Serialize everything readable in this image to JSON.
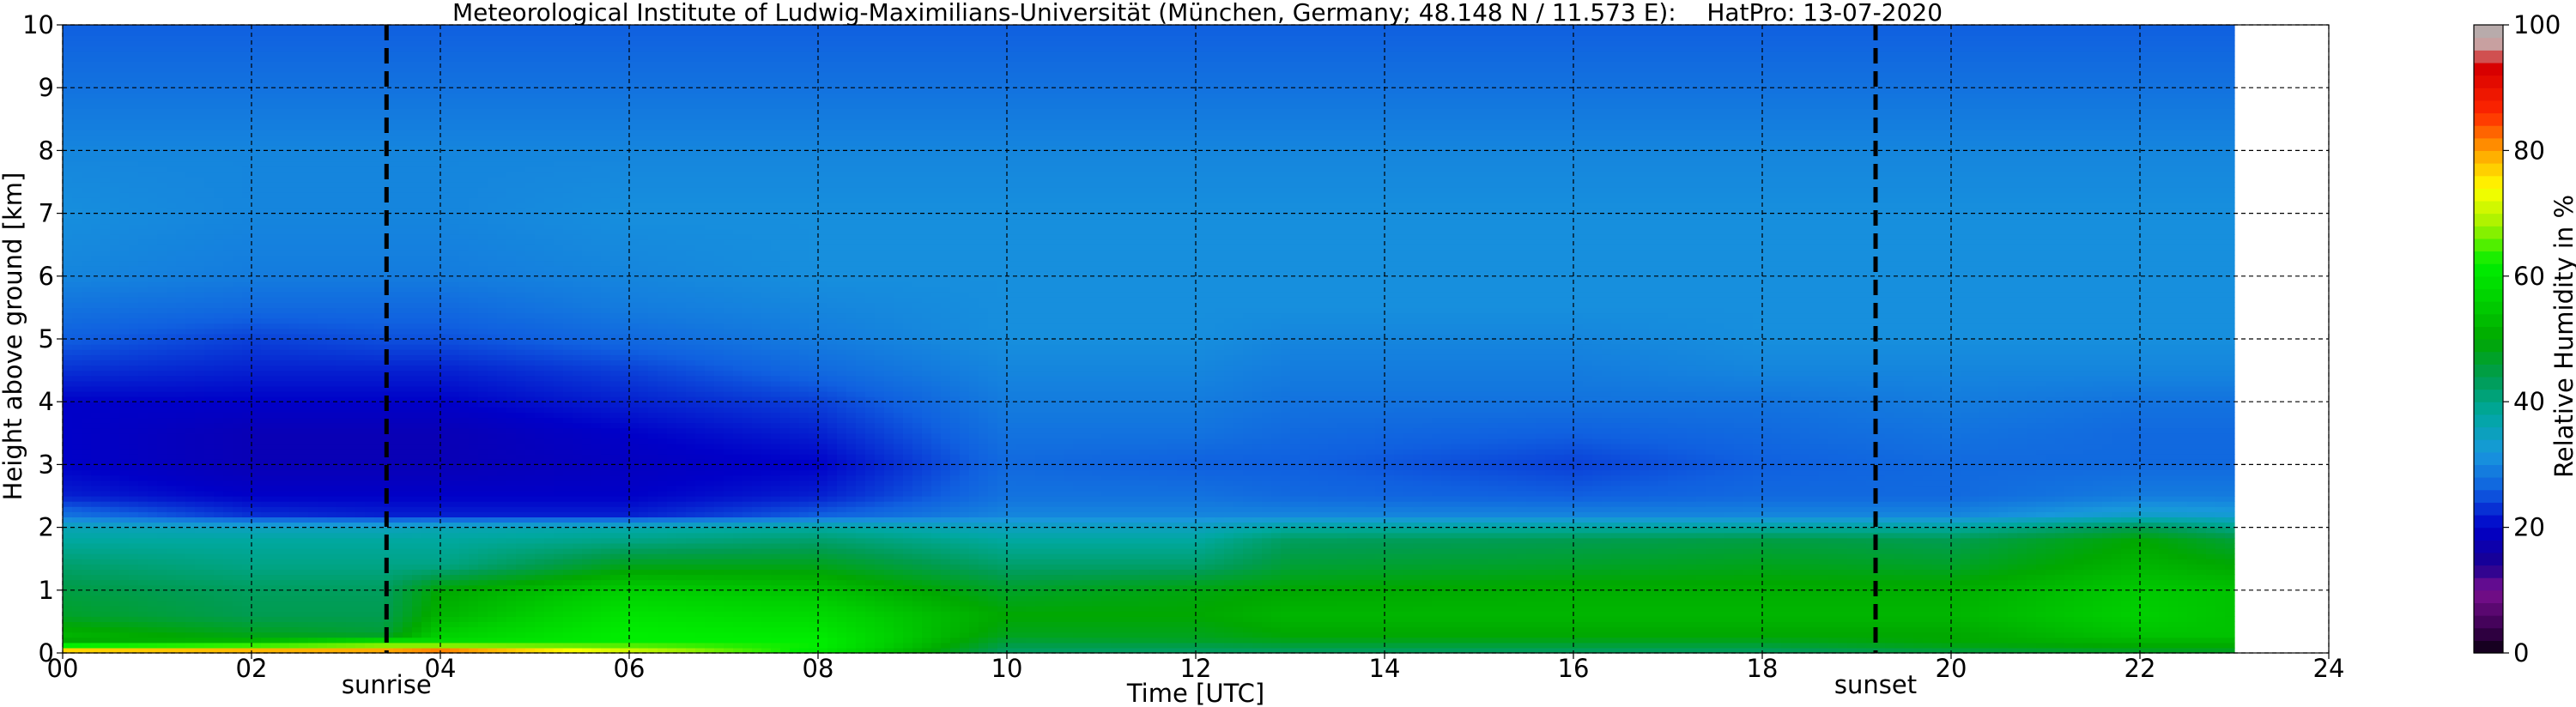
{
  "chart_data": {
    "type": "heatmap",
    "title": "Meteorological Institute of Ludwig-Maximilians-Universität (München, Germany; 48.148 N / 11.573 E):    HatPro: 13-07-2020",
    "xlabel": "Time [UTC]",
    "ylabel": "Height above ground [km]",
    "xlim": [
      0,
      24
    ],
    "ylim": [
      0,
      10
    ],
    "data_end_time": 23,
    "x_ticks": [
      "00",
      "02",
      "04",
      "06",
      "08",
      "10",
      "12",
      "14",
      "16",
      "18",
      "20",
      "22",
      "24"
    ],
    "y_ticks": [
      "0",
      "1",
      "2",
      "3",
      "4",
      "5",
      "6",
      "7",
      "8",
      "9",
      "10"
    ],
    "grid": true,
    "colorbar": {
      "label": "Relative Humidity in %",
      "range": [
        0,
        100
      ],
      "ticks": [
        "0",
        "20",
        "40",
        "60",
        "80",
        "100"
      ],
      "colors": [
        {
          "value": 0,
          "color": "#0a0010"
        },
        {
          "value": 4,
          "color": "#3a0050"
        },
        {
          "value": 10,
          "color": "#7a1090"
        },
        {
          "value": 14,
          "color": "#1a0090"
        },
        {
          "value": 20,
          "color": "#0000c8"
        },
        {
          "value": 26,
          "color": "#1060e0"
        },
        {
          "value": 32,
          "color": "#1898dc"
        },
        {
          "value": 38,
          "color": "#00a8a0"
        },
        {
          "value": 44,
          "color": "#009c50"
        },
        {
          "value": 50,
          "color": "#00a800"
        },
        {
          "value": 56,
          "color": "#00d000"
        },
        {
          "value": 62,
          "color": "#00ee00"
        },
        {
          "value": 68,
          "color": "#a0f000"
        },
        {
          "value": 74,
          "color": "#ffff00"
        },
        {
          "value": 80,
          "color": "#ffa000"
        },
        {
          "value": 86,
          "color": "#ff2800"
        },
        {
          "value": 93,
          "color": "#d80000"
        },
        {
          "value": 97,
          "color": "#c8a0a0"
        },
        {
          "value": 100,
          "color": "#b0b0b0"
        }
      ]
    },
    "events": [
      {
        "label": "sunrise",
        "time": 3.43
      },
      {
        "label": "sunset",
        "time": 19.2
      }
    ],
    "profile_heights_km": [
      0,
      0.1,
      0.2,
      0.3,
      0.6,
      1.0,
      1.4,
      1.8,
      2.0,
      2.2,
      2.5,
      3.0,
      3.5,
      4.0,
      4.5,
      5.0,
      5.5,
      6.0,
      7.0,
      8.0,
      9.0,
      10.0
    ],
    "profiles": [
      {
        "time": 0,
        "rh": [
          84,
          66,
          50,
          52,
          47,
          45,
          42,
          38,
          36,
          28,
          22,
          20,
          20,
          20,
          23,
          26,
          28,
          30,
          31,
          30,
          28,
          26
        ]
      },
      {
        "time": 2,
        "rh": [
          86,
          68,
          52,
          48,
          44,
          43,
          40,
          38,
          35,
          23,
          20,
          18,
          18,
          20,
          22,
          24,
          27,
          29,
          30,
          30,
          28,
          26
        ]
      },
      {
        "time": 3.4,
        "rh": [
          86,
          70,
          58,
          46,
          44,
          43,
          40,
          38,
          35,
          22,
          20,
          18,
          18,
          20,
          22,
          25,
          27,
          29,
          30,
          30,
          28,
          26
        ]
      },
      {
        "time": 4,
        "rh": [
          90,
          70,
          58,
          56,
          52,
          50,
          40,
          38,
          36,
          22,
          20,
          18,
          18,
          20,
          22,
          25,
          27,
          29,
          30,
          30,
          28,
          26
        ]
      },
      {
        "time": 6,
        "rh": [
          74,
          66,
          62,
          62,
          60,
          56,
          48,
          40,
          37,
          22,
          20,
          19,
          20,
          22,
          24,
          27,
          29,
          30,
          31,
          30,
          28,
          26
        ]
      },
      {
        "time": 8,
        "rh": [
          60,
          62,
          62,
          61,
          58,
          54,
          48,
          42,
          38,
          26,
          22,
          20,
          22,
          24,
          27,
          29,
          30,
          31,
          31,
          30,
          28,
          26
        ]
      },
      {
        "time": 10,
        "rh": [
          42,
          44,
          46,
          48,
          50,
          47,
          42,
          38,
          35,
          30,
          28,
          27,
          28,
          29,
          30,
          31,
          31,
          31,
          31,
          30,
          28,
          26
        ]
      },
      {
        "time": 12,
        "rh": [
          42,
          44,
          47,
          48,
          50,
          49,
          42,
          38,
          35,
          30,
          28,
          26,
          28,
          29,
          30,
          31,
          31,
          31,
          31,
          30,
          28,
          26
        ]
      },
      {
        "time": 13,
        "rh": [
          42,
          45,
          48,
          50,
          52,
          50,
          46,
          43,
          38,
          30,
          27,
          26,
          27,
          28,
          29,
          30,
          31,
          31,
          31,
          30,
          28,
          26
        ]
      },
      {
        "time": 16,
        "rh": [
          42,
          45,
          48,
          50,
          52,
          51,
          47,
          44,
          38,
          30,
          26,
          24,
          26,
          28,
          29,
          30,
          31,
          31,
          31,
          30,
          28,
          26
        ]
      },
      {
        "time": 18,
        "rh": [
          42,
          45,
          48,
          50,
          52,
          51,
          48,
          45,
          38,
          30,
          27,
          26,
          27,
          28,
          30,
          31,
          31,
          31,
          31,
          30,
          28,
          26
        ]
      },
      {
        "time": 20,
        "rh": [
          44,
          48,
          50,
          50,
          52,
          51,
          47,
          44,
          38,
          30,
          27,
          27,
          28,
          29,
          30,
          31,
          31,
          31,
          31,
          30,
          28,
          26
        ]
      },
      {
        "time": 22,
        "rh": [
          46,
          50,
          52,
          54,
          56,
          55,
          52,
          50,
          44,
          34,
          29,
          27,
          27,
          28,
          30,
          31,
          31,
          31,
          31,
          30,
          28,
          26
        ]
      },
      {
        "time": 23,
        "rh": [
          46,
          50,
          52,
          54,
          54,
          54,
          50,
          46,
          40,
          33,
          29,
          27,
          27,
          28,
          30,
          31,
          31,
          31,
          31,
          30,
          28,
          26
        ]
      }
    ]
  }
}
